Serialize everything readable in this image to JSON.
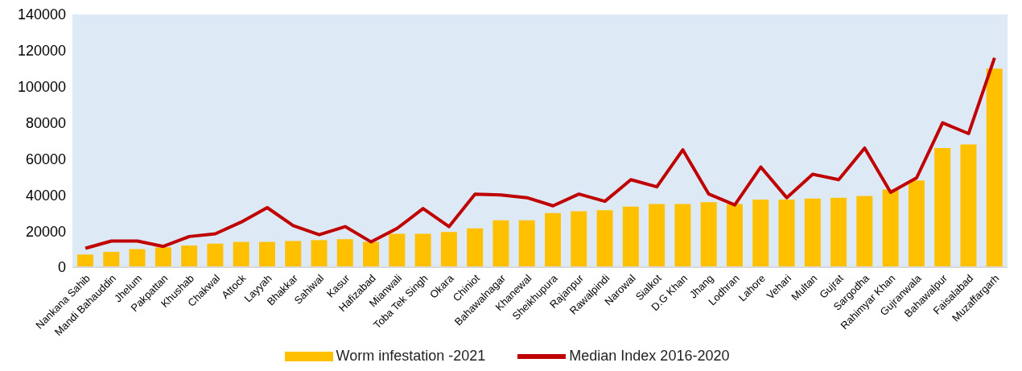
{
  "chart_data": {
    "type": "bar",
    "categories": [
      "Nankana Sahib",
      "Mandi Bahauddin",
      "Jhelum",
      "Pakpattan",
      "Khushab",
      "Chakwal",
      "Attock",
      "Layyah",
      "Bhakkar",
      "Sahiwal",
      "Kasur",
      "Hafizabad",
      "Mianwali",
      "Toba Tek Singh",
      "Okara",
      "Chiniot",
      "Bahawalnagar",
      "Khanewal",
      "Sheikhupura",
      "Rajanpur",
      "Rawalpindi",
      "Narowal",
      "Sialkot",
      "D.G Khan",
      "Jhang",
      "Lodhran",
      "Lahore",
      "Vehari",
      "Multan",
      "Gujrat",
      "Sargodha",
      "Rahimyar Khan",
      "Gujranwala",
      "Bahawalpur",
      "Faisalabad",
      "Muzaffargarh"
    ],
    "series": [
      {
        "name": "Worm infestation -2021",
        "color": "#ffc000",
        "values": [
          7000,
          8500,
          10000,
          11000,
          12000,
          13000,
          14000,
          14000,
          14500,
          15000,
          15500,
          14000,
          18500,
          18500,
          19500,
          21500,
          26000,
          26000,
          30000,
          31000,
          31500,
          33500,
          35000,
          35000,
          36000,
          35000,
          37500,
          37500,
          38000,
          38500,
          39500,
          43000,
          48000,
          66000,
          68000,
          110000
        ]
      },
      {
        "name": "Median Index 2016-2020",
        "type": "line",
        "color": "#c00000",
        "values": [
          10500,
          14500,
          14500,
          11500,
          17000,
          18500,
          25000,
          33000,
          23000,
          18000,
          22500,
          14000,
          21500,
          32500,
          22500,
          40500,
          40000,
          38500,
          34000,
          40500,
          36500,
          48500,
          44500,
          65000,
          40500,
          34500,
          55500,
          38500,
          51500,
          48500,
          66000,
          41500,
          49500,
          80000,
          74000,
          116000
        ]
      }
    ],
    "ylim": [
      0,
      140000
    ],
    "yticks": [
      0,
      20000,
      40000,
      60000,
      80000,
      100000,
      120000,
      140000
    ],
    "grid": false,
    "legend": "bottom",
    "marker": "none"
  }
}
